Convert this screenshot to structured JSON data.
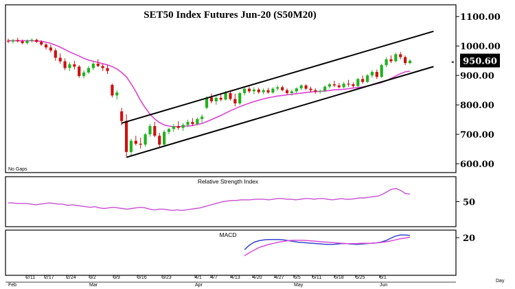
{
  "chart_data": [
    {
      "type": "candlestick",
      "title": "SET50  Index  Futures  Jun-20  (S50M20)",
      "note": "No Gaps",
      "y_ticks": [
        "1100.00",
        "1000.00",
        "900.00",
        "800.00",
        "700.00",
        "600.00"
      ],
      "ylim": [
        570,
        1140
      ],
      "last_price": "950.60",
      "x_tick_labels": [
        "2/11",
        "2/17",
        "2/24",
        "3/2",
        "3/9",
        "3/16",
        "3/23",
        "4/1",
        "4/7",
        "4/13",
        "4/20",
        "4/27",
        "5/5",
        "5/11",
        "5/18",
        "5/25",
        "6/1"
      ],
      "month_labels": [
        "Feb",
        "Mar",
        "Apr",
        "May",
        "Jun"
      ],
      "x_axis_unit": "Day",
      "candles": [
        {
          "o": 1018,
          "h": 1025,
          "l": 1010,
          "c": 1015
        },
        {
          "o": 1015,
          "h": 1024,
          "l": 1008,
          "c": 1020
        },
        {
          "o": 1020,
          "h": 1028,
          "l": 1012,
          "c": 1016
        },
        {
          "o": 1016,
          "h": 1022,
          "l": 1006,
          "c": 1010
        },
        {
          "o": 1010,
          "h": 1022,
          "l": 1005,
          "c": 1018
        },
        {
          "o": 1018,
          "h": 1026,
          "l": 1012,
          "c": 1021
        },
        {
          "o": 1021,
          "h": 1025,
          "l": 1010,
          "c": 1014
        },
        {
          "o": 1014,
          "h": 1020,
          "l": 1000,
          "c": 1005
        },
        {
          "o": 1005,
          "h": 1010,
          "l": 988,
          "c": 995
        },
        {
          "o": 995,
          "h": 1005,
          "l": 978,
          "c": 985
        },
        {
          "o": 985,
          "h": 992,
          "l": 950,
          "c": 960
        },
        {
          "o": 960,
          "h": 975,
          "l": 940,
          "c": 948
        },
        {
          "o": 948,
          "h": 958,
          "l": 918,
          "c": 925
        },
        {
          "o": 925,
          "h": 945,
          "l": 915,
          "c": 938
        },
        {
          "o": 938,
          "h": 950,
          "l": 920,
          "c": 930
        },
        {
          "o": 930,
          "h": 935,
          "l": 892,
          "c": 898
        },
        {
          "o": 898,
          "h": 918,
          "l": 890,
          "c": 910
        },
        {
          "o": 910,
          "h": 932,
          "l": 905,
          "c": 925
        },
        {
          "o": 925,
          "h": 950,
          "l": 918,
          "c": 940
        },
        {
          "o": 940,
          "h": 955,
          "l": 928,
          "c": 932
        },
        {
          "o": 932,
          "h": 940,
          "l": 915,
          "c": 925
        },
        {
          "o": 925,
          "h": 935,
          "l": 905,
          "c": 915
        },
        {
          "o": 868,
          "h": 872,
          "l": 825,
          "c": 832
        },
        {
          "o": 832,
          "h": 850,
          "l": 818,
          "c": 842
        },
        {
          "o": 778,
          "h": 790,
          "l": 730,
          "c": 745
        },
        {
          "o": 745,
          "h": 768,
          "l": 625,
          "c": 640
        },
        {
          "o": 640,
          "h": 685,
          "l": 628,
          "c": 678
        },
        {
          "o": 678,
          "h": 695,
          "l": 662,
          "c": 668
        },
        {
          "o": 668,
          "h": 688,
          "l": 652,
          "c": 665
        },
        {
          "o": 665,
          "h": 705,
          "l": 658,
          "c": 700
        },
        {
          "o": 700,
          "h": 735,
          "l": 692,
          "c": 728
        },
        {
          "o": 728,
          "h": 742,
          "l": 690,
          "c": 695
        },
        {
          "o": 695,
          "h": 705,
          "l": 658,
          "c": 665
        },
        {
          "o": 665,
          "h": 715,
          "l": 660,
          "c": 708
        },
        {
          "o": 708,
          "h": 722,
          "l": 700,
          "c": 718
        },
        {
          "o": 718,
          "h": 735,
          "l": 708,
          "c": 728
        },
        {
          "o": 728,
          "h": 745,
          "l": 715,
          "c": 722
        },
        {
          "o": 722,
          "h": 738,
          "l": 712,
          "c": 732
        },
        {
          "o": 732,
          "h": 750,
          "l": 725,
          "c": 742
        },
        {
          "o": 742,
          "h": 755,
          "l": 728,
          "c": 735
        },
        {
          "o": 735,
          "h": 758,
          "l": 730,
          "c": 752
        },
        {
          "o": 752,
          "h": 768,
          "l": 740,
          "c": 760
        },
        {
          "o": 790,
          "h": 830,
          "l": 785,
          "c": 825
        },
        {
          "o": 825,
          "h": 838,
          "l": 805,
          "c": 812
        },
        {
          "o": 812,
          "h": 830,
          "l": 800,
          "c": 824
        },
        {
          "o": 824,
          "h": 840,
          "l": 812,
          "c": 818
        },
        {
          "o": 818,
          "h": 848,
          "l": 815,
          "c": 840
        },
        {
          "o": 840,
          "h": 850,
          "l": 815,
          "c": 820
        },
        {
          "o": 820,
          "h": 838,
          "l": 795,
          "c": 805
        },
        {
          "o": 805,
          "h": 845,
          "l": 800,
          "c": 840
        },
        {
          "o": 840,
          "h": 862,
          "l": 832,
          "c": 855
        },
        {
          "o": 855,
          "h": 862,
          "l": 840,
          "c": 846
        },
        {
          "o": 846,
          "h": 860,
          "l": 836,
          "c": 852
        },
        {
          "o": 852,
          "h": 858,
          "l": 838,
          "c": 843
        },
        {
          "o": 843,
          "h": 856,
          "l": 836,
          "c": 850
        },
        {
          "o": 850,
          "h": 858,
          "l": 838,
          "c": 842
        },
        {
          "o": 842,
          "h": 860,
          "l": 838,
          "c": 855
        },
        {
          "o": 855,
          "h": 866,
          "l": 848,
          "c": 860
        },
        {
          "o": 860,
          "h": 866,
          "l": 846,
          "c": 850
        },
        {
          "o": 850,
          "h": 856,
          "l": 835,
          "c": 840
        },
        {
          "o": 840,
          "h": 852,
          "l": 832,
          "c": 846
        },
        {
          "o": 846,
          "h": 860,
          "l": 840,
          "c": 856
        },
        {
          "o": 856,
          "h": 870,
          "l": 850,
          "c": 866
        },
        {
          "o": 866,
          "h": 870,
          "l": 850,
          "c": 855
        },
        {
          "o": 855,
          "h": 862,
          "l": 842,
          "c": 850
        },
        {
          "o": 850,
          "h": 856,
          "l": 838,
          "c": 845
        },
        {
          "o": 845,
          "h": 852,
          "l": 838,
          "c": 848
        },
        {
          "o": 848,
          "h": 866,
          "l": 844,
          "c": 862
        },
        {
          "o": 862,
          "h": 876,
          "l": 856,
          "c": 870
        },
        {
          "o": 870,
          "h": 882,
          "l": 860,
          "c": 866
        },
        {
          "o": 866,
          "h": 874,
          "l": 856,
          "c": 860
        },
        {
          "o": 860,
          "h": 878,
          "l": 856,
          "c": 872
        },
        {
          "o": 872,
          "h": 885,
          "l": 862,
          "c": 870
        },
        {
          "o": 870,
          "h": 876,
          "l": 858,
          "c": 864
        },
        {
          "o": 864,
          "h": 892,
          "l": 860,
          "c": 888
        },
        {
          "o": 888,
          "h": 900,
          "l": 872,
          "c": 878
        },
        {
          "o": 878,
          "h": 905,
          "l": 875,
          "c": 900
        },
        {
          "o": 900,
          "h": 918,
          "l": 892,
          "c": 912
        },
        {
          "o": 912,
          "h": 920,
          "l": 888,
          "c": 895
        },
        {
          "o": 895,
          "h": 940,
          "l": 892,
          "c": 935
        },
        {
          "o": 935,
          "h": 962,
          "l": 928,
          "c": 955
        },
        {
          "o": 955,
          "h": 968,
          "l": 942,
          "c": 948
        },
        {
          "o": 948,
          "h": 978,
          "l": 945,
          "c": 972
        },
        {
          "o": 972,
          "h": 980,
          "l": 955,
          "c": 962
        },
        {
          "o": 962,
          "h": 968,
          "l": 935,
          "c": 942
        },
        {
          "o": 942,
          "h": 955,
          "l": 938,
          "c": 950
        }
      ],
      "moving_average": [
        1018,
        1018,
        1018,
        1018,
        1018,
        1018,
        1017,
        1016,
        1013,
        1009,
        1003,
        996,
        988,
        980,
        973,
        966,
        958,
        952,
        948,
        944,
        940,
        936,
        930,
        922,
        910,
        895,
        872,
        845,
        815,
        790,
        768,
        752,
        740,
        732,
        728,
        726,
        726,
        727,
        728,
        730,
        733,
        737,
        743,
        750,
        757,
        764,
        772,
        780,
        787,
        794,
        800,
        806,
        811,
        816,
        820,
        824,
        827,
        830,
        832,
        834,
        836,
        838,
        840,
        842,
        844,
        845,
        846,
        847,
        849,
        851,
        852,
        853,
        855,
        857,
        859,
        861,
        864,
        868,
        872,
        876,
        882,
        890,
        898,
        906,
        912,
        915
      ],
      "trendlines": [
        {
          "from_candle": 25,
          "from_value": 622,
          "to_candle": 90,
          "to_value": 930
        },
        {
          "from_candle": 24,
          "from_value": 738,
          "to_candle": 90,
          "to_value": 1050
        }
      ]
    },
    {
      "type": "line",
      "title": "Relative  Strength  Index",
      "y_ticks": [
        "50"
      ],
      "ylim": [
        10,
        90
      ],
      "series": [
        {
          "values": [
            48,
            48,
            47,
            47,
            47,
            46,
            45,
            46,
            47,
            48,
            47,
            46,
            46,
            44,
            45,
            44,
            43,
            42,
            41,
            42,
            40,
            39,
            40,
            41,
            40,
            39,
            38,
            39,
            40,
            41,
            40,
            38,
            37,
            38,
            38,
            37,
            36,
            37,
            36,
            37,
            38,
            39,
            40,
            42,
            44,
            46,
            48,
            50,
            51,
            52,
            52,
            53,
            53,
            53,
            54,
            54,
            54,
            53,
            54,
            55,
            55,
            54,
            54,
            53,
            54,
            55,
            55,
            54,
            55,
            55,
            54,
            53,
            54,
            55,
            54,
            54,
            55,
            56,
            56,
            57,
            58,
            59,
            62,
            66,
            70,
            71,
            68,
            63,
            62
          ]
        }
      ]
    },
    {
      "type": "line",
      "title": "MACD",
      "y_ticks": [
        "20"
      ],
      "ylim": [
        -80,
        40
      ],
      "series": [
        {
          "values": [
            -12,
            0,
            8,
            12,
            14,
            15,
            15,
            15,
            14,
            12,
            10,
            8,
            7,
            6,
            5,
            4,
            3,
            2,
            2,
            3,
            4,
            4,
            3,
            2,
            3,
            4,
            5,
            6,
            8,
            12,
            18,
            24,
            27,
            27,
            26
          ]
        },
        {
          "values": [
            -28,
            -20,
            -13,
            -6,
            -2,
            2,
            5,
            8,
            10,
            12,
            13,
            13,
            13,
            12,
            11,
            10,
            9,
            8,
            7,
            6,
            5,
            4,
            4,
            4,
            5,
            5,
            5,
            6,
            7,
            9,
            11,
            14,
            17,
            19,
            21
          ]
        }
      ]
    }
  ]
}
